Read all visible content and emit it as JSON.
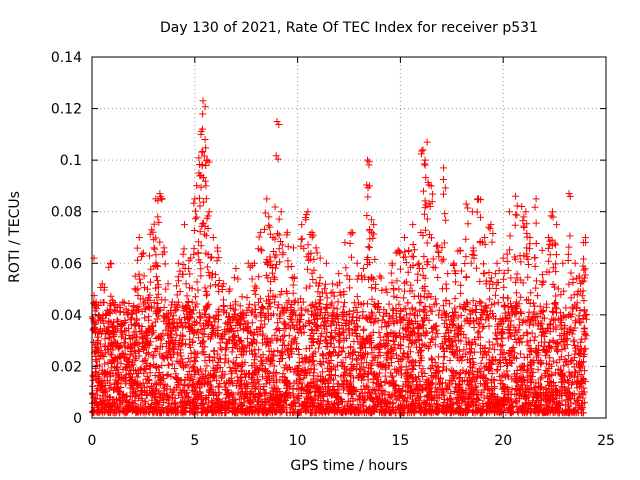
{
  "chart_data": {
    "type": "scatter",
    "title": "Day 130 of 2021, Rate Of TEC Index for receiver p531",
    "xlabel": "GPS time / hours",
    "ylabel": "ROTI / TECUs",
    "xlim": [
      0,
      25
    ],
    "ylim": [
      0,
      0.14
    ],
    "x_ticks": [
      0,
      5,
      10,
      15,
      20,
      25
    ],
    "x_tick_labels": [
      "0",
      "5",
      "10",
      "15",
      "20",
      "25"
    ],
    "y_ticks": [
      0,
      0.02,
      0.04,
      0.06,
      0.08,
      0.1,
      0.12,
      0.14
    ],
    "y_tick_labels": [
      "0",
      "0.02",
      "0.04",
      "0.06",
      "0.08",
      "0.1",
      "0.12",
      "0.14"
    ],
    "grid": true,
    "grid_style": "dotted",
    "marker": "plus",
    "color": "#ff0000",
    "series": [
      {
        "x": [
          0.1,
          0.2,
          0.3,
          0.5,
          0.7,
          0.9,
          1.0,
          1.2,
          1.5,
          1.8,
          2.1,
          2.3,
          2.5,
          2.7,
          2.9,
          3.1,
          3.2,
          3.3,
          3.5,
          3.7,
          3.9,
          4.2,
          4.5,
          4.7,
          4.8,
          5.0,
          5.2,
          5.3,
          5.4,
          5.5,
          5.6,
          5.7,
          5.9,
          6.1,
          6.4,
          6.7,
          7.0,
          7.3,
          7.6,
          7.9,
          8.2,
          8.5,
          8.6,
          8.8,
          9.0,
          9.2,
          9.5,
          9.8,
          10.2,
          10.5,
          10.7,
          10.9,
          11.1,
          11.4,
          11.7,
          12.0,
          12.3,
          12.6,
          12.9,
          13.2,
          13.4,
          13.5,
          13.7,
          14.0,
          14.3,
          14.6,
          14.9,
          15.2,
          15.4,
          15.6,
          15.9,
          16.1,
          16.2,
          16.3,
          16.5,
          16.8,
          17.1,
          17.3,
          17.6,
          17.9,
          18.2,
          18.5,
          18.8,
          19.1,
          19.4,
          19.7,
          20.0,
          20.3,
          20.6,
          20.9,
          21.1,
          21.3,
          21.6,
          21.9,
          22.2,
          22.4,
          22.6,
          22.9,
          23.2,
          23.5,
          23.7,
          23.9,
          24.0
        ],
        "y": [
          0.062,
          0.045,
          0.03,
          0.052,
          0.04,
          0.06,
          0.035,
          0.028,
          0.045,
          0.032,
          0.055,
          0.07,
          0.064,
          0.05,
          0.073,
          0.085,
          0.078,
          0.087,
          0.066,
          0.052,
          0.045,
          0.06,
          0.075,
          0.058,
          0.062,
          0.085,
          0.095,
          0.11,
          0.123,
          0.108,
          0.1,
          0.08,
          0.07,
          0.066,
          0.052,
          0.05,
          0.058,
          0.047,
          0.06,
          0.06,
          0.072,
          0.085,
          0.078,
          0.07,
          0.115,
          0.08,
          0.072,
          0.066,
          0.075,
          0.08,
          0.072,
          0.066,
          0.062,
          0.06,
          0.052,
          0.056,
          0.068,
          0.072,
          0.06,
          0.058,
          0.1,
          0.09,
          0.075,
          0.055,
          0.05,
          0.06,
          0.065,
          0.07,
          0.065,
          0.075,
          0.06,
          0.104,
          0.1,
          0.107,
          0.09,
          0.067,
          0.097,
          0.056,
          0.06,
          0.065,
          0.083,
          0.08,
          0.085,
          0.07,
          0.075,
          0.06,
          0.062,
          0.08,
          0.086,
          0.082,
          0.08,
          0.07,
          0.085,
          0.065,
          0.07,
          0.08,
          0.075,
          0.06,
          0.087,
          0.06,
          0.055,
          0.068,
          0.07
        ]
      }
    ],
    "background_band": {
      "y_range": [
        0.0,
        0.045
      ],
      "description_density": "dense"
    }
  }
}
